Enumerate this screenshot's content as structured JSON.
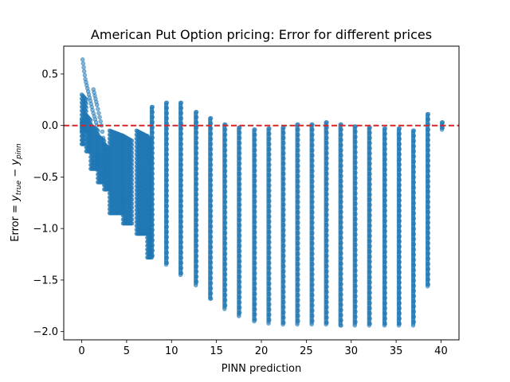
{
  "chart_data": {
    "type": "scatter",
    "title": "American Put Option pricing: Error for different prices",
    "xlabel": "PINN prediction",
    "ylabel": {
      "prefix": "Error = ",
      "y1": "y",
      "sub1": "true",
      "minus": " − ",
      "y2": "y",
      "sub2": "pinn"
    },
    "xlim": [
      -2.0,
      42.0
    ],
    "ylim": [
      -2.08,
      0.77
    ],
    "x_ticks": [
      0,
      5,
      10,
      15,
      20,
      25,
      30,
      35,
      40
    ],
    "y_ticks": [
      0.5,
      0.0,
      -0.5,
      -1.0,
      -1.5,
      -2.0
    ],
    "y_tick_labels": [
      "0.5",
      "0.0",
      "−0.5",
      "−1.0",
      "−1.5",
      "−2.0"
    ],
    "reference_line": {
      "y": 0.0,
      "color": "#d62728",
      "style": "dashed"
    },
    "point_color": "#1f77b4",
    "grid": false,
    "legend": "none",
    "series": [
      {
        "bands": [
          {
            "x0": 0.0,
            "x1": 0.25,
            "ytop": 0.05,
            "ybot": -0.18
          },
          {
            "x0": 0.0,
            "x1": 0.5,
            "ytop": 0.3,
            "ybot": -0.05
          },
          {
            "x0": 0.5,
            "x1": 1.0,
            "ytop": 0.1,
            "ybot": -0.25
          },
          {
            "x0": 1.0,
            "x1": 1.8,
            "ytop": 0.0,
            "ybot": -0.42
          },
          {
            "x0": 1.8,
            "x1": 2.5,
            "ytop": -0.1,
            "ybot": -0.55
          },
          {
            "x0": 2.5,
            "x1": 3.1,
            "ytop": -0.18,
            "ybot": -0.62
          },
          {
            "x0": 3.1,
            "x1": 4.6,
            "ytop": -0.05,
            "ybot": -0.85
          },
          {
            "x0": 4.6,
            "x1": 5.6,
            "ytop": -0.1,
            "ybot": -0.95
          },
          {
            "x0": 6.1,
            "x1": 7.2,
            "ytop": -0.05,
            "ybot": -1.05
          },
          {
            "x0": 7.3,
            "x1": 7.7,
            "ytop": -0.1,
            "ybot": -1.28
          }
        ],
        "curves": [
          {
            "x": [
              0.1,
              0.4,
              0.8,
              1.2,
              1.7
            ],
            "y": [
              0.64,
              0.45,
              0.3,
              0.15,
              0.0
            ]
          },
          {
            "x": [
              1.3,
              1.7,
              2.2,
              2.7,
              3.1
            ],
            "y": [
              0.35,
              0.2,
              0.0,
              -0.3,
              -0.62
            ]
          }
        ],
        "columns": [
          {
            "x": 7.8,
            "ymax": 0.18,
            "ymin": -1.28
          },
          {
            "x": 9.4,
            "ymax": 0.22,
            "ymin": -1.35
          },
          {
            "x": 11.0,
            "ymax": 0.22,
            "ymin": -1.45
          },
          {
            "x": 12.7,
            "ymax": 0.13,
            "ymin": -1.55
          },
          {
            "x": 14.3,
            "ymax": 0.07,
            "ymin": -1.68
          },
          {
            "x": 15.9,
            "ymax": 0.01,
            "ymin": -1.78
          },
          {
            "x": 17.5,
            "ymax": -0.02,
            "ymin": -1.85
          },
          {
            "x": 19.2,
            "ymax": -0.04,
            "ymin": -1.9
          },
          {
            "x": 20.8,
            "ymax": -0.03,
            "ymin": -1.92
          },
          {
            "x": 22.4,
            "ymax": -0.02,
            "ymin": -1.93
          },
          {
            "x": 24.0,
            "ymax": 0.01,
            "ymin": -1.93
          },
          {
            "x": 25.6,
            "ymax": 0.01,
            "ymin": -1.93
          },
          {
            "x": 27.2,
            "ymax": 0.03,
            "ymin": -1.93
          },
          {
            "x": 28.8,
            "ymax": 0.01,
            "ymin": -1.94
          },
          {
            "x": 30.4,
            "ymax": -0.01,
            "ymin": -1.94
          },
          {
            "x": 32.0,
            "ymax": -0.02,
            "ymin": -1.94
          },
          {
            "x": 33.7,
            "ymax": -0.03,
            "ymin": -1.94
          },
          {
            "x": 35.3,
            "ymax": -0.03,
            "ymin": -1.94
          },
          {
            "x": 36.9,
            "ymax": -0.05,
            "ymin": -1.94
          },
          {
            "x": 38.5,
            "ymax": 0.11,
            "ymin": -1.56
          },
          {
            "x": 40.1,
            "ymax": 0.03,
            "ymin": -0.04
          }
        ]
      }
    ]
  }
}
